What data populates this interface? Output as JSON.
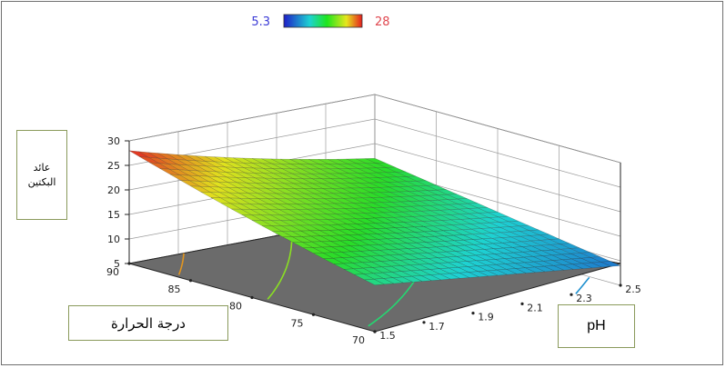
{
  "chart_data": {
    "type": "surface",
    "title": "",
    "zlabel": "عائد\nالبكتين",
    "xlabel": "درجة الحرارة",
    "ylabel": "pH",
    "colorbar": {
      "min": "5.3",
      "max": "28",
      "min_color": "#2b3cb3",
      "max_color": "#e23c3c"
    },
    "z_ticks": [
      "5",
      "10",
      "15",
      "20",
      "25",
      "30"
    ],
    "z_range": [
      5,
      30
    ],
    "temperature_ticks": [
      "70",
      "75",
      "80",
      "85",
      "90"
    ],
    "temperature_range": [
      70,
      90
    ],
    "ph_ticks": [
      "1.5",
      "1.7",
      "1.9",
      "2.1",
      "2.3",
      "2.5"
    ],
    "ph_range": [
      1.5,
      2.5
    ],
    "surface_corners": [
      {
        "temperature": 90,
        "ph": 1.5,
        "yield": 28
      },
      {
        "temperature": 70,
        "ph": 1.5,
        "yield": 14.5
      },
      {
        "temperature": 70,
        "ph": 2.5,
        "yield": 9
      },
      {
        "temperature": 90,
        "ph": 2.5,
        "yield": 17
      }
    ],
    "contour_levels": [
      25,
      20,
      15,
      10
    ]
  }
}
